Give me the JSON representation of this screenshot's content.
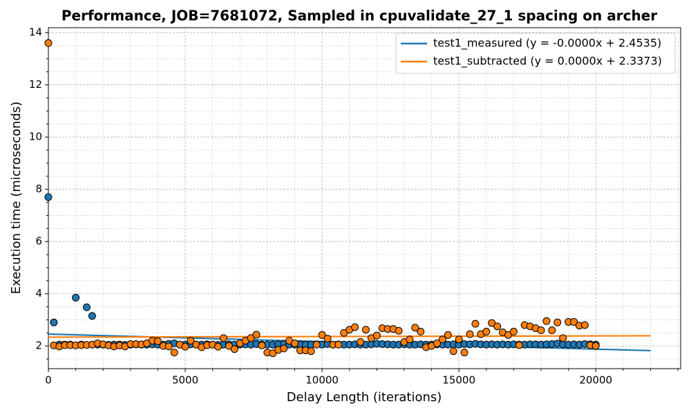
{
  "chart_data": {
    "type": "scatter",
    "title": "Performance, JOB=7681072, Sampled in cpuvalidate_27_1 spacing on archer",
    "x_label": "Delay Length (iterations)",
    "y_label": "Execution time (microseconds)",
    "xlim": [
      0,
      23100
    ],
    "ylim": [
      1.13,
      14.19
    ],
    "xticks": [
      0,
      5000,
      10000,
      15000,
      20000
    ],
    "yticks": [
      2,
      4,
      6,
      8,
      10,
      12,
      14
    ],
    "xminorticks": [
      1000,
      2000,
      3000,
      4000,
      6000,
      7000,
      8000,
      9000,
      11000,
      12000,
      13000,
      14000,
      16000,
      17000,
      18000,
      19000,
      21000,
      22000,
      23000
    ],
    "yminorticks": [
      1.5,
      2.5,
      3,
      3.5,
      4.5,
      5,
      5.5,
      6.5,
      7,
      7.5,
      8.5,
      9,
      9.5,
      10.5,
      11,
      11.5,
      12.5,
      13,
      13.5
    ],
    "grid": true,
    "legend": "upper right",
    "x": [
      0,
      200,
      400,
      600,
      800,
      1000,
      1200,
      1400,
      1600,
      1800,
      2000,
      2200,
      2400,
      2600,
      2800,
      3000,
      3200,
      3400,
      3600,
      3800,
      4000,
      4200,
      4400,
      4600,
      4800,
      5000,
      5200,
      5400,
      5600,
      5800,
      6000,
      6200,
      6400,
      6600,
      6800,
      7000,
      7200,
      7400,
      7600,
      7800,
      8000,
      8200,
      8400,
      8600,
      8800,
      9000,
      9200,
      9400,
      9600,
      9800,
      10000,
      10200,
      10400,
      10600,
      10800,
      11000,
      11200,
      11400,
      11600,
      11800,
      12000,
      12200,
      12400,
      12600,
      12800,
      13000,
      13200,
      13400,
      13600,
      13800,
      14000,
      14200,
      14400,
      14600,
      14800,
      15000,
      15200,
      15400,
      15600,
      15800,
      16000,
      16200,
      16400,
      16600,
      16800,
      17000,
      17200,
      17400,
      17600,
      17800,
      18000,
      18200,
      18400,
      18600,
      18800,
      19000,
      19200,
      19400,
      19600,
      19800,
      20000
    ],
    "series": [
      {
        "name": "test1_measured (y = -0.0000x + 2.4535)",
        "color": "#1f77b4",
        "values": [
          7.7,
          2.9,
          2.05,
          2.05,
          2.05,
          3.85,
          2.05,
          3.48,
          3.15,
          2.05,
          2.05,
          2.04,
          2.05,
          2.05,
          2.04,
          2.05,
          2.06,
          2.05,
          2.05,
          2.06,
          2.05,
          2.05,
          2.08,
          2.1,
          2.05,
          2.05,
          2.06,
          2.05,
          2.05,
          2.06,
          2.05,
          2.04,
          2.05,
          2.06,
          2.05,
          2.05,
          2.06,
          2.05,
          2.07,
          2.05,
          2.05,
          2.05,
          2.06,
          2.07,
          2.05,
          2.05,
          2.06,
          2.05,
          2.05,
          2.06,
          2.05,
          2.07,
          2.05,
          2.06,
          2.05,
          2.05,
          2.06,
          2.05,
          2.05,
          2.06,
          2.08,
          2.07,
          2.06,
          2.05,
          2.05,
          2.06,
          2.05,
          2.05,
          2.06,
          2.05,
          2.05,
          2.06,
          2.05,
          2.05,
          2.06,
          2.05,
          2.07,
          2.06,
          2.08,
          2.06,
          2.05,
          2.06,
          2.05,
          2.06,
          2.05,
          2.06,
          2.05,
          2.05,
          2.06,
          2.06,
          2.05,
          2.06,
          2.07,
          2.09,
          2.06,
          2.05,
          2.06,
          2.05,
          2.07,
          2.06,
          2.05
        ],
        "fit": {
          "x": [
            0,
            22000
          ],
          "y": [
            2.4535,
            1.82
          ]
        }
      },
      {
        "name": "test1_subtracted (y = 0.0000x + 2.3373)",
        "color": "#ff7f0e",
        "values": [
          13.6,
          2.02,
          1.98,
          2.03,
          2.03,
          2.02,
          2.03,
          2.04,
          2.05,
          2.1,
          2.06,
          2.02,
          1.98,
          2.02,
          1.98,
          2.07,
          2.07,
          2.06,
          2.1,
          2.2,
          2.18,
          2.0,
          1.98,
          1.75,
          2.05,
          1.97,
          2.2,
          2.05,
          1.95,
          2.03,
          2.05,
          1.97,
          2.3,
          2.0,
          1.88,
          2.1,
          2.2,
          2.3,
          2.43,
          2.02,
          1.75,
          1.72,
          1.85,
          1.9,
          2.2,
          2.1,
          1.83,
          1.83,
          1.8,
          2.05,
          2.42,
          2.28,
          2.05,
          2.05,
          2.5,
          2.62,
          2.72,
          2.15,
          2.62,
          2.3,
          2.4,
          2.68,
          2.65,
          2.65,
          2.58,
          2.15,
          2.25,
          2.7,
          2.55,
          1.95,
          2.0,
          2.1,
          2.25,
          2.42,
          1.8,
          2.25,
          1.75,
          2.45,
          2.85,
          2.45,
          2.55,
          2.88,
          2.75,
          2.52,
          2.42,
          2.55,
          2.03,
          2.8,
          2.75,
          2.68,
          2.6,
          2.95,
          2.6,
          2.9,
          2.3,
          2.92,
          2.92,
          2.78,
          2.8,
          2.03,
          2.0
        ],
        "fit": {
          "x": [
            0,
            22000
          ],
          "y": [
            2.3373,
            2.39
          ]
        }
      }
    ]
  }
}
